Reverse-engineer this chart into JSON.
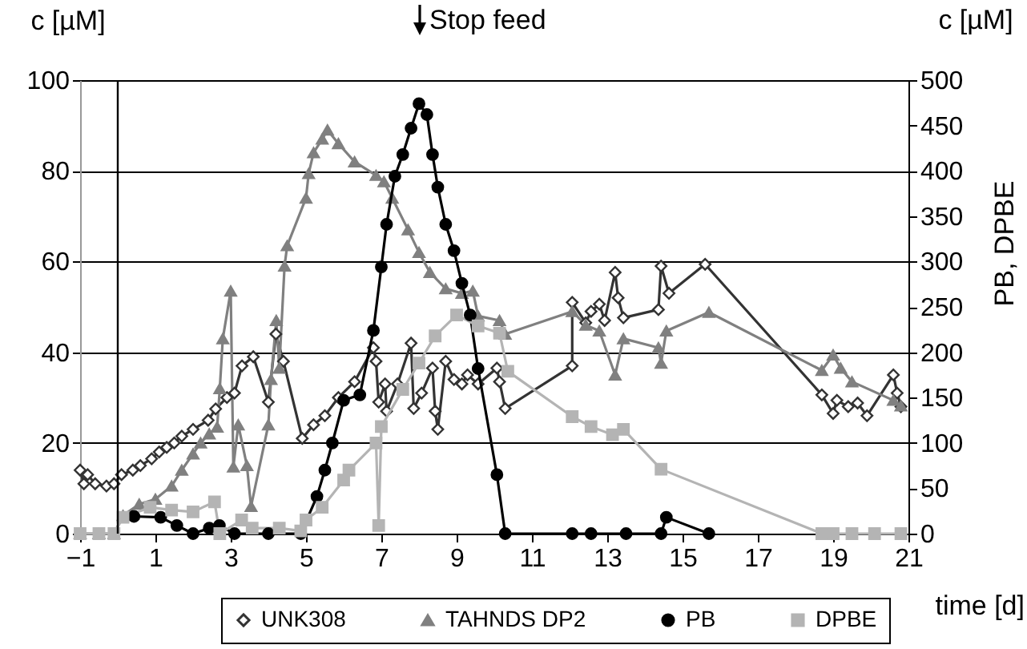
{
  "chart_data": {
    "type": "line",
    "xlabel": "time [d]",
    "ylabel": "c [µM]",
    "y2label": "PB, DPBE",
    "xlim": [
      -1,
      21
    ],
    "xticks": [
      -1,
      1,
      3,
      5,
      7,
      9,
      11,
      13,
      15,
      17,
      19,
      21
    ],
    "ylim": [
      0,
      100
    ],
    "yticks": [
      0,
      20,
      40,
      60,
      80,
      100
    ],
    "y2lim": [
      0,
      500
    ],
    "y2ticks": [
      0,
      50,
      100,
      150,
      200,
      250,
      300,
      350,
      400,
      450,
      500
    ],
    "grid": "y",
    "legend": "bottom",
    "ref_lines": [
      {
        "axis": "x",
        "value": 0,
        "color": "#000000"
      }
    ],
    "annotations": [
      "Stop feed",
      "c [µM]"
    ],
    "series": [
      {
        "name": "UNK308",
        "color": "#333333",
        "marker": "diamond",
        "x": [
          -1,
          -0.9,
          -0.8,
          -0.6,
          -0.3,
          -0.1,
          0.1,
          0.4,
          0.6,
          0.9,
          1.1,
          1.3,
          1.5,
          1.7,
          2,
          2.4,
          2.6,
          2.9,
          3.1,
          3.3,
          3.6,
          4,
          4.2,
          4.4,
          4.9,
          5.2,
          5.5,
          5.86,
          6.29,
          6.79,
          6.86,
          6.93,
          7.1,
          7.14,
          7.43,
          7.79,
          7.86,
          8.07,
          8.36,
          8.43,
          8.5,
          8.71,
          8.93,
          9.14,
          9.29,
          9.57,
          10.07,
          10.14,
          10.29,
          12.07,
          12.07,
          12.43,
          12.57,
          12.79,
          12.93,
          13.21,
          13.29,
          13.43,
          14.36,
          14.43,
          14.64,
          15.6,
          18.7,
          19,
          19.1,
          19.4,
          19.65,
          19.9,
          20.6,
          20.7,
          20.8
        ],
        "values": [
          14,
          11,
          13,
          11,
          10.5,
          11,
          13,
          14,
          15,
          16.5,
          18,
          19,
          20,
          21.5,
          23,
          25,
          27.5,
          30,
          31,
          37,
          39,
          29,
          44,
          38,
          21,
          24,
          26,
          30,
          33.5,
          41,
          38,
          29,
          33,
          27,
          33,
          42,
          27.6,
          31,
          36.5,
          27,
          23,
          38,
          34,
          33,
          35,
          33,
          36.5,
          33.5,
          27.6,
          37,
          51,
          46.5,
          49,
          50.6,
          47,
          57.6,
          52,
          47.6,
          49.4,
          59,
          53,
          59.4,
          30.6,
          26.5,
          29.4,
          28,
          28.8,
          26,
          35,
          31,
          28
        ]
      },
      {
        "name": "TAHNDS DP2",
        "color": "#808080",
        "marker": "triangle",
        "x": [
          -1,
          -0.5,
          -0.1,
          0.14,
          0.57,
          1,
          1.43,
          1.7,
          2,
          2.2,
          2.43,
          2.64,
          2.71,
          2.79,
          3,
          3.07,
          3.2,
          3.43,
          3.54,
          4,
          4.07,
          4.21,
          4.29,
          4.43,
          4.5,
          5,
          5.07,
          5.2,
          5.43,
          5.57,
          5.86,
          6.29,
          6.86,
          7.07,
          7.29,
          7.71,
          8,
          8.29,
          8.71,
          9.14,
          9.43,
          9.57,
          10.14,
          10.29,
          12.07,
          12.43,
          12.79,
          13.21,
          13.43,
          14.36,
          14.43,
          14.57,
          15.7,
          18.7,
          19,
          19.2,
          19.5,
          20.6,
          20.8
        ],
        "values": [
          0,
          0,
          0,
          4,
          6.5,
          7.6,
          10.5,
          14,
          17.6,
          20,
          22,
          23.5,
          32,
          43,
          53.5,
          14.7,
          24,
          15,
          6,
          24,
          34,
          47,
          36.5,
          59,
          63.5,
          74,
          79.4,
          84,
          87,
          89,
          86,
          82,
          79,
          77.6,
          74,
          67,
          62,
          57.6,
          54,
          53,
          53.5,
          48,
          47,
          44,
          49,
          46,
          44.7,
          35,
          43,
          41,
          37.6,
          44.7,
          48.8,
          36,
          39.4,
          36.5,
          33.5,
          29.4,
          28.2
        ]
      },
      {
        "name": "PB",
        "color": "#000000",
        "marker": "circle",
        "axis": "y2",
        "x": [
          0.43,
          1.14,
          1.57,
          2,
          2.43,
          2.7,
          3.1,
          4,
          4.86,
          5.29,
          5.5,
          5.7,
          6,
          6.43,
          6.79,
          7,
          7.14,
          7.36,
          7.57,
          7.79,
          8,
          8.21,
          8.36,
          8.5,
          8.71,
          8.93,
          9.14,
          9.36,
          9.57,
          10.07,
          10.29,
          12.07,
          12.57,
          13.5,
          14.43,
          14.57,
          15.7
        ],
        "values": [
          19,
          18,
          9,
          0,
          6,
          9,
          0,
          0,
          0,
          41,
          70,
          100,
          147,
          153,
          224,
          294,
          341,
          394,
          418,
          447,
          474,
          462,
          418,
          382,
          341,
          312,
          276,
          241,
          182,
          65,
          0,
          0,
          0,
          0,
          0,
          18,
          0
        ]
      },
      {
        "name": "DPBE",
        "color": "#b4b4b4",
        "marker": "square",
        "axis": "y2",
        "x": [
          -1,
          -0.5,
          -0.1,
          0.14,
          0.86,
          1.43,
          2,
          2.57,
          2.71,
          3.29,
          3.57,
          4.29,
          4.86,
          5,
          5.43,
          6,
          6.14,
          6.86,
          6.93,
          7,
          7.57,
          8,
          8.43,
          9,
          9.57,
          10.14,
          10.36,
          12.07,
          12.57,
          13.14,
          13.43,
          14.43,
          18.7,
          19,
          19.5,
          20.1,
          20.8
        ],
        "values": [
          0,
          0,
          0,
          18,
          29,
          26,
          24,
          35,
          0,
          15,
          6,
          6,
          3,
          15,
          29,
          59,
          70,
          100,
          9,
          118,
          159,
          188,
          218,
          241,
          229,
          221,
          179,
          129,
          118,
          109,
          115,
          71,
          0,
          0,
          0,
          0,
          0
        ]
      }
    ]
  }
}
